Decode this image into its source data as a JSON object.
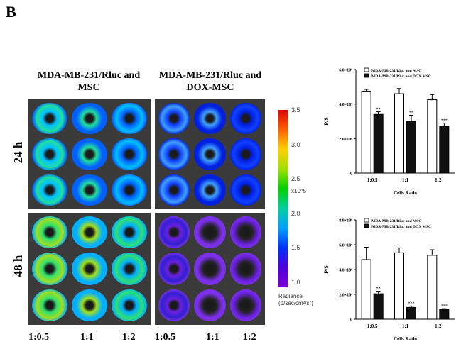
{
  "panel_letter": "B",
  "columns": {
    "left": "MDA-MB-231/Rluc and MSC",
    "right": "MDA-MB-231/Rluc and DOX-MSC"
  },
  "rows": [
    "24 h",
    "48 h"
  ],
  "ratios": [
    "1:0.5",
    "1:1",
    "1:2",
    "1:0.5",
    "1:1",
    "1:2"
  ],
  "colorbar": {
    "ticks": [
      "3.5",
      "3.0",
      "2.5",
      "2.0",
      "1.5",
      "1.0"
    ],
    "unit": "x10^5",
    "label": "Radiance",
    "label2": "(p/sec/cm²/sr)"
  },
  "chart_data": [
    {
      "type": "bar",
      "title": "",
      "xlabel": "Cells Ratio",
      "ylabel": "P/S",
      "categories": [
        "1:0.5",
        "1:1",
        "1:2"
      ],
      "yticks": [
        "0",
        "2.0×10⁶",
        "4.0×10⁶",
        "6.0×10⁶"
      ],
      "ylim": [
        0,
        6
      ],
      "series": [
        {
          "name": "MDA-MB-231/Rluc and MSC",
          "color": "#ffffff",
          "values": [
            4.75,
            4.6,
            4.25
          ],
          "errors": [
            0.1,
            0.3,
            0.3
          ]
        },
        {
          "name": "MDA-MB-231/Rluc and DOX MSC",
          "color": "#111111",
          "values": [
            3.4,
            3.0,
            2.7
          ],
          "errors": [
            0.15,
            0.35,
            0.2
          ]
        }
      ],
      "annotations": [
        "**",
        "**",
        "***"
      ]
    },
    {
      "type": "bar",
      "title": "",
      "xlabel": "Cells Ratio",
      "ylabel": "P/S",
      "categories": [
        "1:0.5",
        "1:1",
        "1:2"
      ],
      "yticks": [
        "0",
        "2.0×10⁶",
        "4.0×10⁶",
        "6.0×10⁶",
        "8.0×10⁶"
      ],
      "ylim": [
        0,
        8
      ],
      "series": [
        {
          "name": "MDA-MB-231/Rluc and MSC",
          "color": "#ffffff",
          "values": [
            4.8,
            5.35,
            5.15
          ],
          "errors": [
            1.0,
            0.4,
            0.45
          ]
        },
        {
          "name": "MDA-MB-231/Rluc and DOX MSC",
          "color": "#111111",
          "values": [
            2.05,
            0.95,
            0.8
          ],
          "errors": [
            0.2,
            0.1,
            0.05
          ]
        }
      ],
      "annotations": [
        "**",
        "***",
        "***"
      ]
    }
  ]
}
